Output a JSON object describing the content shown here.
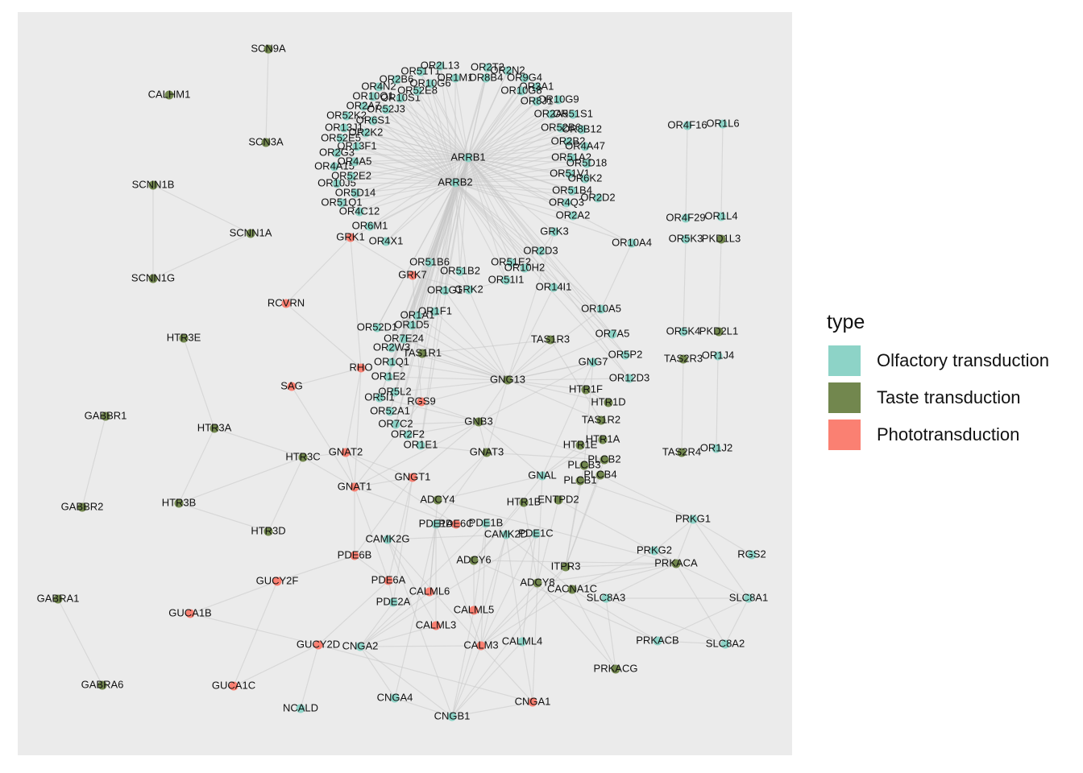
{
  "legend": {
    "title": "type",
    "items": [
      {
        "label": "Olfactory transduction",
        "color": "#8dd3c7"
      },
      {
        "label": "Taste transduction",
        "color": "#72874e"
      },
      {
        "label": "Phototransduction",
        "color": "#fa8072"
      }
    ]
  },
  "nodes": [
    {
      "id": "SCN9A",
      "type": "Taste transduction"
    },
    {
      "id": "CALHM1",
      "type": "Taste transduction"
    },
    {
      "id": "SCN3A",
      "type": "Taste transduction"
    },
    {
      "id": "SCNN1B",
      "type": "Taste transduction"
    },
    {
      "id": "SCNN1A",
      "type": "Taste transduction"
    },
    {
      "id": "SCNN1G",
      "type": "Taste transduction"
    },
    {
      "id": "RCVRN",
      "type": "Phototransduction"
    },
    {
      "id": "HTR3E",
      "type": "Taste transduction"
    },
    {
      "id": "SAG",
      "type": "Phototransduction"
    },
    {
      "id": "RHO",
      "type": "Phototransduction"
    },
    {
      "id": "GABBR1",
      "type": "Taste transduction"
    },
    {
      "id": "HTR3A",
      "type": "Taste transduction"
    },
    {
      "id": "HTR3C",
      "type": "Taste transduction"
    },
    {
      "id": "GNAT2",
      "type": "Phototransduction"
    },
    {
      "id": "GNAT1",
      "type": "Phototransduction"
    },
    {
      "id": "GABBR2",
      "type": "Taste transduction"
    },
    {
      "id": "HTR3B",
      "type": "Taste transduction"
    },
    {
      "id": "HTR3D",
      "type": "Taste transduction"
    },
    {
      "id": "GABRA1",
      "type": "Taste transduction"
    },
    {
      "id": "GABRA6",
      "type": "Taste transduction"
    },
    {
      "id": "GUCA1B",
      "type": "Phototransduction"
    },
    {
      "id": "GUCA1C",
      "type": "Phototransduction"
    },
    {
      "id": "NCALD",
      "type": "Olfactory transduction"
    },
    {
      "id": "GUCY2F",
      "type": "Phototransduction"
    },
    {
      "id": "GUCY2D",
      "type": "Phototransduction"
    },
    {
      "id": "CNGA2",
      "type": "Olfactory transduction"
    },
    {
      "id": "CNGA4",
      "type": "Olfactory transduction"
    },
    {
      "id": "CNGB1",
      "type": "Olfactory transduction"
    },
    {
      "id": "CNGA1",
      "type": "Phototransduction"
    },
    {
      "id": "CALM3",
      "type": "Phototransduction"
    },
    {
      "id": "CALML4",
      "type": "Olfactory transduction"
    },
    {
      "id": "CALML3",
      "type": "Phototransduction"
    },
    {
      "id": "CALML5",
      "type": "Phototransduction"
    },
    {
      "id": "CALML6",
      "type": "Phototransduction"
    },
    {
      "id": "PDE2A",
      "type": "Olfactory transduction"
    },
    {
      "id": "PDE6A",
      "type": "Phototransduction"
    },
    {
      "id": "PDE6B",
      "type": "Phototransduction"
    },
    {
      "id": "CAMK2G",
      "type": "Olfactory transduction"
    },
    {
      "id": "PDE1A",
      "type": "Olfactory transduction"
    },
    {
      "id": "PDE6C",
      "type": "Phototransduction"
    },
    {
      "id": "PDE1B",
      "type": "Olfactory transduction"
    },
    {
      "id": "CAMK2D",
      "type": "Olfactory transduction"
    },
    {
      "id": "PDE1C",
      "type": "Olfactory transduction"
    },
    {
      "id": "ADCY6",
      "type": "Taste transduction"
    },
    {
      "id": "ADCY8",
      "type": "Taste transduction"
    },
    {
      "id": "CACNA1C",
      "type": "Taste transduction"
    },
    {
      "id": "ITPR3",
      "type": "Taste transduction"
    },
    {
      "id": "SLC8A3",
      "type": "Olfactory transduction"
    },
    {
      "id": "SLC8A1",
      "type": "Olfactory transduction"
    },
    {
      "id": "SLC8A2",
      "type": "Olfactory transduction"
    },
    {
      "id": "PRKACB",
      "type": "Olfactory transduction"
    },
    {
      "id": "PRKACG",
      "type": "Taste transduction"
    },
    {
      "id": "PRKACA",
      "type": "Taste transduction"
    },
    {
      "id": "PRKG2",
      "type": "Olfactory transduction"
    },
    {
      "id": "PRKG1",
      "type": "Olfactory transduction"
    },
    {
      "id": "RGS2",
      "type": "Olfactory transduction"
    },
    {
      "id": "ADCY4",
      "type": "Taste transduction"
    },
    {
      "id": "GNGT1",
      "type": "Phototransduction"
    },
    {
      "id": "HTR1B",
      "type": "Taste transduction"
    },
    {
      "id": "ENTPD2",
      "type": "Taste transduction"
    },
    {
      "id": "GNAL",
      "type": "Olfactory transduction"
    },
    {
      "id": "PLCB1",
      "type": "Taste transduction"
    },
    {
      "id": "PLCB4",
      "type": "Taste transduction"
    },
    {
      "id": "PLCB3",
      "type": "Taste transduction"
    },
    {
      "id": "PLCB2",
      "type": "Taste transduction"
    },
    {
      "id": "HTR1E",
      "type": "Taste transduction"
    },
    {
      "id": "HTR1A",
      "type": "Taste transduction"
    },
    {
      "id": "TAS1R2",
      "type": "Taste transduction"
    },
    {
      "id": "HTR1D",
      "type": "Taste transduction"
    },
    {
      "id": "HTR1F",
      "type": "Taste transduction"
    },
    {
      "id": "GNAT3",
      "type": "Taste transduction"
    },
    {
      "id": "GNB3",
      "type": "Taste transduction"
    },
    {
      "id": "GNG13",
      "type": "Taste transduction"
    },
    {
      "id": "GNG7",
      "type": "Olfactory transduction"
    },
    {
      "id": "TAS1R3",
      "type": "Taste transduction"
    },
    {
      "id": "TAS1R1",
      "type": "Taste transduction"
    },
    {
      "id": "RGS9",
      "type": "Phototransduction"
    },
    {
      "id": "OR12D3",
      "type": "Olfactory transduction"
    },
    {
      "id": "OR5P2",
      "type": "Olfactory transduction"
    },
    {
      "id": "OR7A5",
      "type": "Olfactory transduction"
    },
    {
      "id": "OR10A5",
      "type": "Olfactory transduction"
    },
    {
      "id": "OR14I1",
      "type": "Olfactory transduction"
    },
    {
      "id": "OR10A4",
      "type": "Olfactory transduction"
    },
    {
      "id": "GRK3",
      "type": "Olfactory transduction"
    },
    {
      "id": "GRK2",
      "type": "Olfactory transduction"
    },
    {
      "id": "OR1G1",
      "type": "Olfactory transduction"
    },
    {
      "id": "GRK7",
      "type": "Phototransduction"
    },
    {
      "id": "GRK1",
      "type": "Phototransduction"
    },
    {
      "id": "ARRB1",
      "type": "Olfactory transduction"
    },
    {
      "id": "ARRB2",
      "type": "Olfactory transduction"
    },
    {
      "id": "OR4F16",
      "type": "Olfactory transduction"
    },
    {
      "id": "OR1L6",
      "type": "Olfactory transduction"
    },
    {
      "id": "OR4F29",
      "type": "Olfactory transduction"
    },
    {
      "id": "OR1L4",
      "type": "Olfactory transduction"
    },
    {
      "id": "OR5K3",
      "type": "Olfactory transduction"
    },
    {
      "id": "PKD1L3",
      "type": "Taste transduction"
    },
    {
      "id": "OR5K4",
      "type": "Olfactory transduction"
    },
    {
      "id": "PKD2L1",
      "type": "Taste transduction"
    },
    {
      "id": "TAS2R3",
      "type": "Taste transduction"
    },
    {
      "id": "OR1J4",
      "type": "Olfactory transduction"
    },
    {
      "id": "TAS2R4",
      "type": "Taste transduction"
    },
    {
      "id": "OR1J2",
      "type": "Olfactory transduction"
    },
    {
      "id": "OR6M1",
      "type": "Olfactory transduction"
    },
    {
      "id": "OR4X1",
      "type": "Olfactory transduction"
    },
    {
      "id": "OR4C12",
      "type": "Olfactory transduction"
    },
    {
      "id": "OR51Q1",
      "type": "Olfactory transduction"
    },
    {
      "id": "OR5D14",
      "type": "Olfactory transduction"
    },
    {
      "id": "OR10J5",
      "type": "Olfactory transduction"
    },
    {
      "id": "OR52E2",
      "type": "Olfactory transduction"
    },
    {
      "id": "OR4A15",
      "type": "Olfactory transduction"
    },
    {
      "id": "OR4A5",
      "type": "Olfactory transduction"
    },
    {
      "id": "OR2G3",
      "type": "Olfactory transduction"
    },
    {
      "id": "OR13F1",
      "type": "Olfactory transduction"
    },
    {
      "id": "OR52E5",
      "type": "Olfactory transduction"
    },
    {
      "id": "OR13J1",
      "type": "Olfactory transduction"
    },
    {
      "id": "OR2K2",
      "type": "Olfactory transduction"
    },
    {
      "id": "OR52K2",
      "type": "Olfactory transduction"
    },
    {
      "id": "OR6S1",
      "type": "Olfactory transduction"
    },
    {
      "id": "OR52J3",
      "type": "Olfactory transduction"
    },
    {
      "id": "OR2A7",
      "type": "Olfactory transduction"
    },
    {
      "id": "OR10Q1",
      "type": "Olfactory transduction"
    },
    {
      "id": "OR10S1",
      "type": "Olfactory transduction"
    },
    {
      "id": "OR4N2",
      "type": "Olfactory transduction"
    },
    {
      "id": "OR52E8",
      "type": "Olfactory transduction"
    },
    {
      "id": "OR2B6",
      "type": "Olfactory transduction"
    },
    {
      "id": "OR10G6",
      "type": "Olfactory transduction"
    },
    {
      "id": "OR51T1",
      "type": "Olfactory transduction"
    },
    {
      "id": "OR2L13",
      "type": "Olfactory transduction"
    },
    {
      "id": "OR2T2",
      "type": "Olfactory transduction"
    },
    {
      "id": "OR1M1",
      "type": "Olfactory transduction"
    },
    {
      "id": "OR8B4",
      "type": "Olfactory transduction"
    },
    {
      "id": "OR2N2",
      "type": "Olfactory transduction"
    },
    {
      "id": "OR9G4",
      "type": "Olfactory transduction"
    },
    {
      "id": "OR3A1",
      "type": "Olfactory transduction"
    },
    {
      "id": "OR10G8",
      "type": "Olfactory transduction"
    },
    {
      "id": "OR10G9",
      "type": "Olfactory transduction"
    },
    {
      "id": "OR8J1",
      "type": "Olfactory transduction"
    },
    {
      "id": "OR2A5",
      "type": "Olfactory transduction"
    },
    {
      "id": "OR51S1",
      "type": "Olfactory transduction"
    },
    {
      "id": "OR52B6",
      "type": "Olfactory transduction"
    },
    {
      "id": "OR8B12",
      "type": "Olfactory transduction"
    },
    {
      "id": "OR2B2",
      "type": "Olfactory transduction"
    },
    {
      "id": "OR4A47",
      "type": "Olfactory transduction"
    },
    {
      "id": "OR51A2",
      "type": "Olfactory transduction"
    },
    {
      "id": "OR5D18",
      "type": "Olfactory transduction"
    },
    {
      "id": "OR51V1",
      "type": "Olfactory transduction"
    },
    {
      "id": "OR6K2",
      "type": "Olfactory transduction"
    },
    {
      "id": "OR51B4",
      "type": "Olfactory transduction"
    },
    {
      "id": "OR2D2",
      "type": "Olfactory transduction"
    },
    {
      "id": "OR4Q3",
      "type": "Olfactory transduction"
    },
    {
      "id": "OR2A2",
      "type": "Olfactory transduction"
    },
    {
      "id": "OR2D3",
      "type": "Olfactory transduction"
    },
    {
      "id": "OR51B6",
      "type": "Olfactory transduction"
    },
    {
      "id": "OR51B2",
      "type": "Olfactory transduction"
    },
    {
      "id": "OR51E2",
      "type": "Olfactory transduction"
    },
    {
      "id": "OR10H2",
      "type": "Olfactory transduction"
    },
    {
      "id": "OR51I1",
      "type": "Olfactory transduction"
    },
    {
      "id": "OR1F1",
      "type": "Olfactory transduction"
    },
    {
      "id": "OR1A1",
      "type": "Olfactory transduction"
    },
    {
      "id": "OR52D1",
      "type": "Olfactory transduction"
    },
    {
      "id": "OR1D5",
      "type": "Olfactory transduction"
    },
    {
      "id": "OR7E24",
      "type": "Olfactory transduction"
    },
    {
      "id": "OR2W3",
      "type": "Olfactory transduction"
    },
    {
      "id": "OR1Q1",
      "type": "Olfactory transduction"
    },
    {
      "id": "OR1E2",
      "type": "Olfactory transduction"
    },
    {
      "id": "OR5L2",
      "type": "Olfactory transduction"
    },
    {
      "id": "OR5I1",
      "type": "Olfactory transduction"
    },
    {
      "id": "OR52A1",
      "type": "Olfactory transduction"
    },
    {
      "id": "OR7C2",
      "type": "Olfactory transduction"
    },
    {
      "id": "OR2F2",
      "type": "Olfactory transduction"
    },
    {
      "id": "OR1E1",
      "type": "Olfactory transduction"
    }
  ]
}
